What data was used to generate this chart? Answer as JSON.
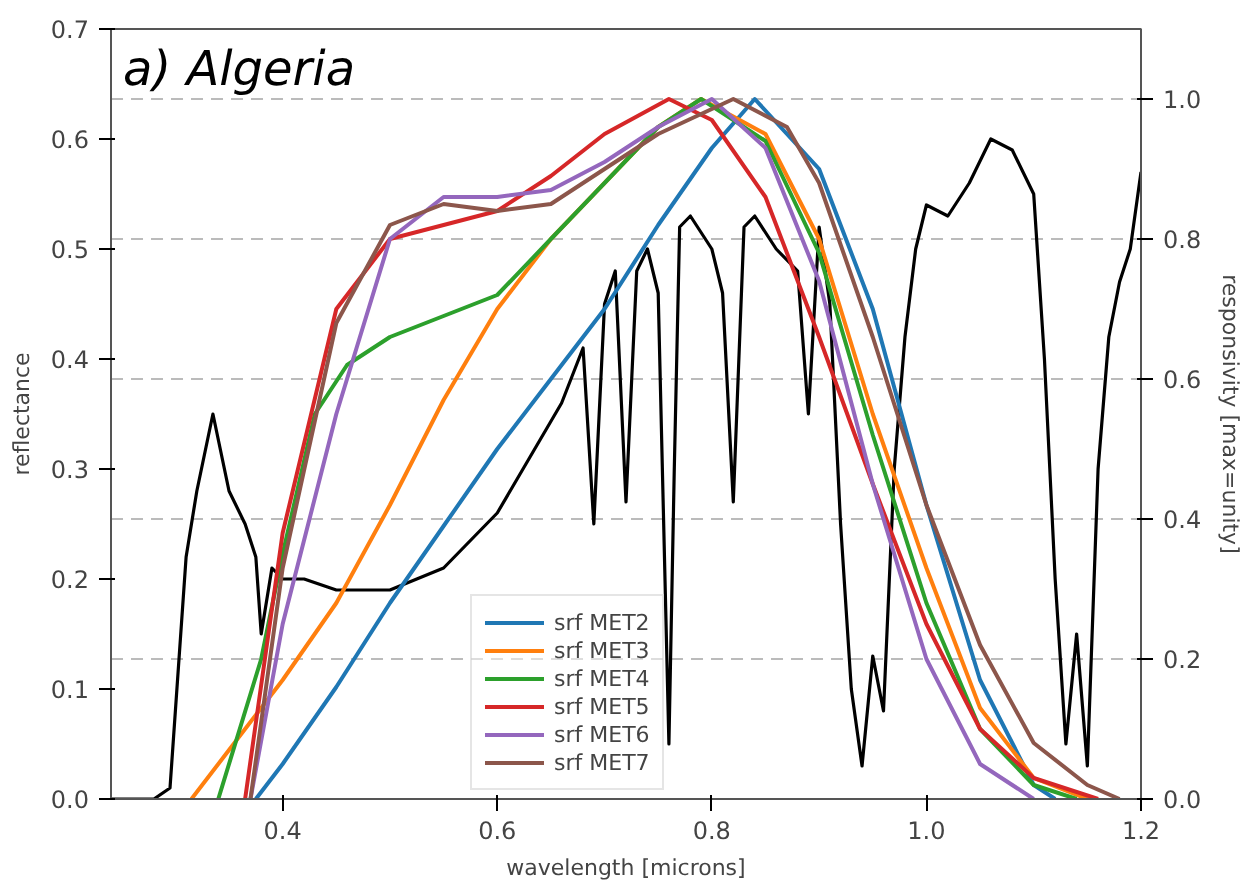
{
  "chart_data": {
    "type": "line",
    "annotations": [
      "a) Algeria"
    ],
    "xlabel": "wavelength [microns]",
    "ylabel": "reflectance",
    "y2label": "responsivity [max=unity]",
    "xlim": [
      0.24,
      1.2
    ],
    "xticks": [
      0.4,
      0.6,
      0.8,
      {
        "value": 1.0,
        "label": "1.0"
      },
      1.2
    ],
    "ylim": [
      0,
      0.7
    ],
    "yticks": [
      {
        "value": 0,
        "label": "0.0"
      },
      0.1,
      0.2,
      0.3,
      0.4,
      0.5,
      0.6,
      0.7
    ],
    "y2lim": [
      0,
      1.1
    ],
    "y2ticks": [
      {
        "value": 0,
        "label": "0.0"
      },
      0.2,
      0.4,
      0.6,
      0.8,
      {
        "value": 1.0,
        "label": "1.0"
      }
    ],
    "grid": "y2",
    "legend": "bottom",
    "line_style": "solid",
    "series": [
      {
        "color": "#000000",
        "x": [
          0.24,
          0.28,
          0.295,
          0.31,
          0.32,
          0.335,
          0.35,
          0.365,
          0.375,
          0.38,
          0.39,
          0.4,
          0.42,
          0.45,
          0.5,
          0.55,
          0.6,
          0.63,
          0.66,
          0.68,
          0.69,
          0.7,
          0.71,
          0.72,
          0.73,
          0.74,
          0.75,
          0.76,
          0.765,
          0.77,
          0.78,
          0.8,
          0.81,
          0.82,
          0.83,
          0.84,
          0.86,
          0.88,
          0.89,
          0.9,
          0.91,
          0.92,
          0.93,
          0.94,
          0.95,
          0.96,
          0.97,
          0.98,
          0.99,
          1.0,
          1.02,
          1.04,
          1.06,
          1.08,
          1.09,
          1.1,
          1.11,
          1.12,
          1.13,
          1.14,
          1.15,
          1.16,
          1.17,
          1.18,
          1.19,
          1.2
        ],
        "values": [
          0,
          0,
          0.01,
          0.22,
          0.28,
          0.35,
          0.28,
          0.25,
          0.22,
          0.15,
          0.21,
          0.2,
          0.2,
          0.19,
          0.19,
          0.21,
          0.26,
          0.31,
          0.36,
          0.41,
          0.25,
          0.45,
          0.48,
          0.27,
          0.48,
          0.5,
          0.46,
          0.05,
          0.3,
          0.52,
          0.53,
          0.5,
          0.46,
          0.27,
          0.52,
          0.53,
          0.5,
          0.48,
          0.35,
          0.52,
          0.45,
          0.25,
          0.1,
          0.03,
          0.13,
          0.08,
          0.3,
          0.42,
          0.5,
          0.54,
          0.53,
          0.56,
          0.6,
          0.59,
          0.57,
          0.55,
          0.4,
          0.2,
          0.05,
          0.15,
          0.03,
          0.3,
          0.42,
          0.47,
          0.5,
          0.57
        ]
      },
      {
        "name": "srf MET2",
        "color": "#1f77b4",
        "axis": "y2",
        "x": [
          0.375,
          0.4,
          0.45,
          0.5,
          0.55,
          0.6,
          0.65,
          0.7,
          0.75,
          0.8,
          0.84,
          0.9,
          0.95,
          1.0,
          1.05,
          1.1,
          1.12
        ],
        "values": [
          0,
          0.05,
          0.16,
          0.28,
          0.39,
          0.5,
          0.6,
          0.7,
          0.82,
          0.93,
          1.0,
          0.9,
          0.7,
          0.42,
          0.17,
          0.02,
          0
        ]
      },
      {
        "name": "srf MET3",
        "color": "#ff7f0e",
        "axis": "y2",
        "x": [
          0.315,
          0.35,
          0.4,
          0.45,
          0.5,
          0.55,
          0.6,
          0.65,
          0.7,
          0.75,
          0.79,
          0.85,
          0.9,
          0.95,
          1.0,
          1.05,
          1.1,
          1.15
        ],
        "values": [
          0,
          0.07,
          0.17,
          0.28,
          0.42,
          0.57,
          0.7,
          0.8,
          0.88,
          0.96,
          1.0,
          0.95,
          0.8,
          0.55,
          0.33,
          0.13,
          0.03,
          0
        ]
      },
      {
        "name": "srf MET4",
        "color": "#2ca02c",
        "axis": "y2",
        "x": [
          0.34,
          0.38,
          0.4,
          0.43,
          0.46,
          0.5,
          0.55,
          0.6,
          0.65,
          0.7,
          0.75,
          0.79,
          0.85,
          0.9,
          0.95,
          1.0,
          1.05,
          1.1,
          1.14
        ],
        "values": [
          0,
          0.2,
          0.35,
          0.55,
          0.62,
          0.66,
          0.69,
          0.72,
          0.8,
          0.88,
          0.96,
          1.0,
          0.94,
          0.78,
          0.52,
          0.28,
          0.1,
          0.02,
          0
        ]
      },
      {
        "name": "srf MET5",
        "color": "#d62728",
        "axis": "y2",
        "x": [
          0.365,
          0.4,
          0.45,
          0.5,
          0.55,
          0.6,
          0.65,
          0.7,
          0.76,
          0.8,
          0.85,
          0.9,
          0.95,
          1.0,
          1.05,
          1.1,
          1.16
        ],
        "values": [
          0,
          0.38,
          0.7,
          0.8,
          0.82,
          0.84,
          0.89,
          0.95,
          1.0,
          0.97,
          0.86,
          0.66,
          0.45,
          0.25,
          0.1,
          0.03,
          0
        ]
      },
      {
        "name": "srf MET6",
        "color": "#9467bd",
        "axis": "y2",
        "x": [
          0.37,
          0.4,
          0.45,
          0.5,
          0.55,
          0.6,
          0.65,
          0.7,
          0.75,
          0.8,
          0.85,
          0.9,
          0.95,
          1.0,
          1.05,
          1.1
        ],
        "values": [
          0,
          0.25,
          0.55,
          0.8,
          0.86,
          0.86,
          0.87,
          0.91,
          0.96,
          1.0,
          0.93,
          0.74,
          0.45,
          0.2,
          0.05,
          0
        ]
      },
      {
        "name": "srf MET7",
        "color": "#8c564b",
        "axis": "y2",
        "x": [
          0.37,
          0.4,
          0.45,
          0.5,
          0.55,
          0.6,
          0.65,
          0.7,
          0.75,
          0.82,
          0.87,
          0.9,
          0.95,
          1.0,
          1.05,
          1.1,
          1.15,
          1.18
        ],
        "values": [
          0,
          0.33,
          0.68,
          0.82,
          0.85,
          0.84,
          0.85,
          0.9,
          0.95,
          1.0,
          0.96,
          0.88,
          0.66,
          0.42,
          0.22,
          0.08,
          0.02,
          0
        ]
      }
    ]
  }
}
